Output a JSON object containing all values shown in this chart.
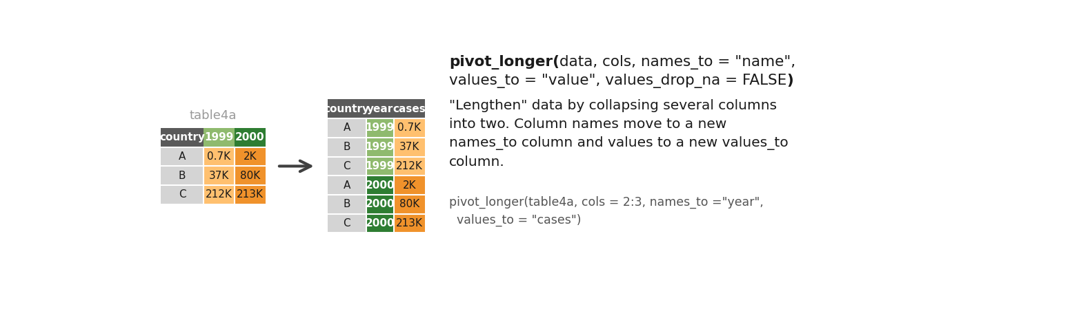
{
  "title_left": "table4a",
  "title_color": "#999999",
  "bg_color": "#ffffff",
  "left_table": {
    "headers": [
      "country",
      "1999",
      "2000"
    ],
    "header_colors": [
      "#5a5a5a",
      "#8fba6e",
      "#2e7d32"
    ],
    "header_text_colors": [
      "#ffffff",
      "#ffffff",
      "#ffffff"
    ],
    "rows": [
      [
        "A",
        "0.7K",
        "2K"
      ],
      [
        "B",
        "37K",
        "80K"
      ],
      [
        "C",
        "212K",
        "213K"
      ]
    ],
    "row_bg": "#d4d4d4",
    "col1_colors": [
      "#ffc06f",
      "#ffc06f",
      "#ffc06f"
    ],
    "col2_colors": [
      "#f0922b",
      "#f0922b",
      "#f0922b"
    ]
  },
  "right_table": {
    "headers": [
      "country",
      "year",
      "cases"
    ],
    "header_colors": [
      "#5a5a5a",
      "#5a5a5a",
      "#5a5a5a"
    ],
    "header_text_colors": [
      "#ffffff",
      "#ffffff",
      "#ffffff"
    ],
    "rows": [
      [
        "A",
        "1999",
        "0.7K"
      ],
      [
        "B",
        "1999",
        "37K"
      ],
      [
        "C",
        "1999",
        "212K"
      ],
      [
        "A",
        "2000",
        "2K"
      ],
      [
        "B",
        "2000",
        "80K"
      ],
      [
        "C",
        "2000",
        "213K"
      ]
    ],
    "row_bg": "#d4d4d4",
    "year_colors": [
      "#8fba6e",
      "#8fba6e",
      "#8fba6e",
      "#2e7d32",
      "#2e7d32",
      "#2e7d32"
    ],
    "cases_colors": [
      "#ffc06f",
      "#ffc06f",
      "#ffc06f",
      "#f0922b",
      "#f0922b",
      "#f0922b"
    ]
  }
}
